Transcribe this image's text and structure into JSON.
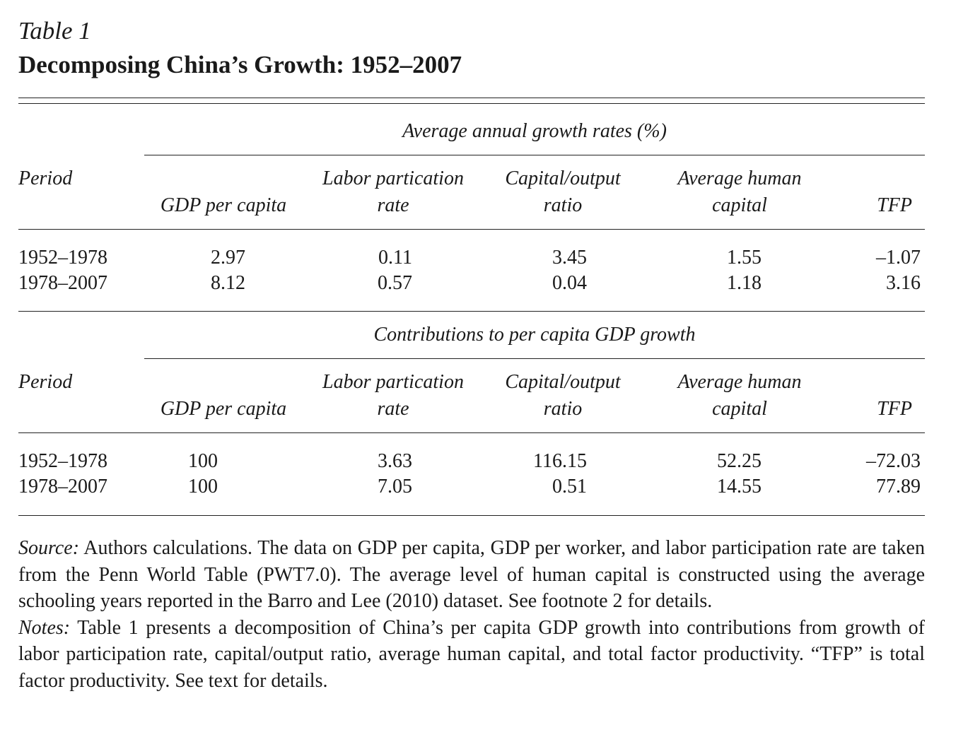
{
  "table_label": "Table 1",
  "table_title": "Decomposing China’s Growth: 1952–2007",
  "panel_a": {
    "spanner": "Average annual growth rates (%)",
    "period_header": "Period",
    "columns": [
      {
        "line1": "",
        "line2": "GDP per capita"
      },
      {
        "line1": "Labor partication",
        "line2": "rate"
      },
      {
        "line1": "Capital/output",
        "line2": "ratio"
      },
      {
        "line1": "Average human",
        "line2": "capital"
      },
      {
        "line1": "",
        "line2": "TFP"
      }
    ],
    "rows": [
      {
        "period": "1952–1978",
        "values": [
          "2.97",
          "0.11",
          "3.45",
          "1.55",
          "–1.07"
        ]
      },
      {
        "period": "1978–2007",
        "values": [
          "8.12",
          "0.57",
          "0.04",
          "1.18",
          "3.16"
        ]
      }
    ]
  },
  "panel_b": {
    "spanner": "Contributions to per capita GDP growth",
    "period_header": "Period",
    "columns": [
      {
        "line1": "",
        "line2": "GDP per capita"
      },
      {
        "line1": "Labor partication",
        "line2": "rate"
      },
      {
        "line1": "Capital/output",
        "line2": "ratio"
      },
      {
        "line1": "Average human",
        "line2": "capital"
      },
      {
        "line1": "",
        "line2": "TFP"
      }
    ],
    "rows": [
      {
        "period": "1952–1978",
        "values": [
          "100",
          "3.63",
          "116.15",
          "52.25",
          "–72.03"
        ]
      },
      {
        "period": "1978–2007",
        "values": [
          "100",
          "7.05",
          "0.51",
          "14.55",
          "77.89"
        ]
      }
    ]
  },
  "source": {
    "label": "Source:",
    "text": " Authors calculations. The data on GDP per capita, GDP per worker, and labor participation rate are taken from the Penn World Table (PWT7.0). The average level of human capital is constructed using the average schooling years reported in the Barro and Lee (2010) dataset. See footnote 2 for details."
  },
  "notes": {
    "label": "Notes:",
    "text": " Table 1 presents a decomposition of China’s per capita GDP growth into contributions from growth of labor participation rate, capital/output ratio, average human capital, and total factor productivity. “TFP” is total factor productivity. See text for details."
  }
}
